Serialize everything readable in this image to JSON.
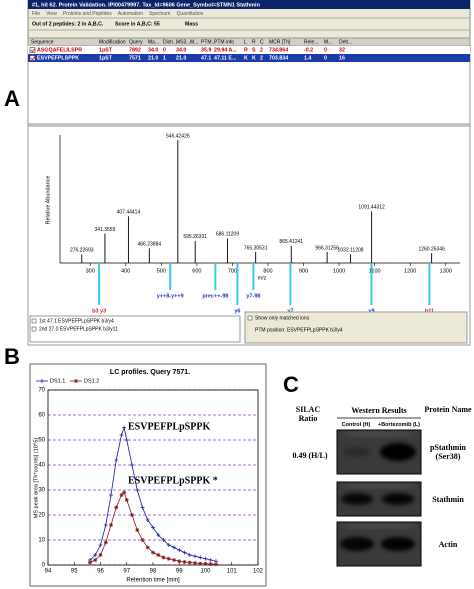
{
  "panel_labels": [
    "A",
    "B",
    "C"
  ],
  "panel_a": {
    "window_title": "#1, hit 62. Protein Validation. IPI00479997. Tax_Id=9606 Gene_Symbol=STMN1 Stathmin",
    "menu": [
      "File",
      "View",
      "Proteins and Peptides",
      "Automation",
      "Spectrum",
      "Quantitation"
    ],
    "toolbar": [
      "Out of 2 peptides: 2 in A,B,C.",
      "Score in A,B,C: 55",
      "Mass"
    ],
    "table": {
      "columns": [
        "Sequence",
        "Modification",
        "Query",
        "Ma...",
        "Dish...",
        "MS3...",
        "M...",
        "PTM...",
        "PTM info",
        "L",
        "R",
        "C",
        "MCR [Th]",
        "Rele...",
        "M...",
        "Delt..."
      ],
      "rows": [
        [
          "ASGQAFELILSPR",
          "1pST",
          "7892",
          "34.0",
          "0",
          "34.0",
          null,
          "35.9",
          "29.94 A...",
          "R",
          "S",
          "2",
          "734.864",
          "-0.2",
          "0",
          "32"
        ],
        [
          "ESVPEFPLSPPK",
          "1pST",
          "7571",
          "21.0",
          "1",
          "21.0",
          null,
          "47.1",
          "47.11 E...",
          "K",
          "K",
          "2",
          "703.834",
          "1.4",
          "0",
          "16"
        ]
      ]
    },
    "spectrum_checks": [
      "1st 47.1 ESVPEFPLpSPPK b3/y4",
      "2nd 27.0 ESVPEFPLpSPPK b3/y11"
    ],
    "show_only_matched": "Show only matched ions",
    "ptm_position": "PTM position: ESVPEFPLpSPPK b3/y4"
  },
  "chart_data": [
    {
      "type": "stem",
      "x": [
        276.22693,
        341.3559,
        407.44414,
        466.23884,
        546.42426,
        595.26331,
        686.11209,
        765.30531,
        865.41241,
        966.31256,
        1032.11208,
        1091.44312,
        1260.26346
      ],
      "values": [
        7,
        24,
        38,
        12,
        100,
        18,
        20,
        9,
        14,
        9,
        7,
        42,
        8
      ],
      "color": "#000000",
      "xlim": [
        215,
        1340
      ],
      "xticks": [
        300,
        400,
        500,
        600,
        700,
        800,
        900,
        1000,
        1100,
        1200,
        1300
      ],
      "ylim": [
        0,
        100
      ],
      "xlabel": "m/z",
      "ylabel": "Relative Abundance",
      "annotations": [
        {
          "text": "b3 y3",
          "x": 325,
          "color": "#cc2222"
        },
        {
          "text": "y++8-y++9",
          "x": 525,
          "color": "#2233cc"
        },
        {
          "text": "prec++-98",
          "x": 652,
          "color": "#2233cc"
        },
        {
          "text": "y6",
          "x": 714,
          "color": "#2233cc"
        },
        {
          "text": "y7-98",
          "x": 759,
          "color": "#2233cc"
        },
        {
          "text": "y7",
          "x": 863,
          "color": "#2233cc"
        },
        {
          "text": "y9",
          "x": 1091,
          "color": "#2233cc"
        },
        {
          "text": "b11",
          "x": 1254,
          "color": "#cc2222"
        }
      ]
    },
    {
      "type": "line",
      "title": "LC profiles. Query 7571.",
      "x": [
        95.6,
        95.8,
        96.0,
        96.2,
        96.4,
        96.6,
        96.8,
        96.9,
        97.0,
        97.2,
        97.4,
        97.6,
        97.8,
        98.0,
        98.2,
        98.4,
        98.6,
        98.8,
        99.0,
        99.2,
        99.4,
        99.6,
        99.8,
        100.0,
        100.2,
        100.4
      ],
      "series": [
        {
          "name": "DS1.1",
          "color": "#1a1aa8",
          "values": [
            2,
            4,
            8,
            16,
            28,
            42,
            52,
            55,
            50,
            40,
            30,
            23,
            18,
            15,
            12,
            10,
            8,
            7,
            6,
            5,
            4,
            3.5,
            3,
            2.5,
            2,
            1.5
          ]
        },
        {
          "name": "DS1.2",
          "color": "#8b1a1a",
          "values": [
            1,
            2,
            4,
            9,
            16,
            23,
            28,
            29,
            26,
            20,
            14,
            10,
            7,
            5,
            4,
            3,
            2.5,
            2,
            1.5,
            1.2,
            1,
            0.8,
            0.6,
            0.5,
            0.4,
            0.3
          ]
        }
      ],
      "xlim": [
        94,
        102
      ],
      "xticks": [
        94,
        95,
        96,
        97,
        98,
        99,
        100,
        101,
        102
      ],
      "ylim": [
        0,
        70
      ],
      "yticks": [
        0,
        10,
        20,
        30,
        40,
        50,
        60,
        70
      ],
      "xlabel": "Retention time [min]",
      "ylabel": "MS peak area [Th*counts] (10^5)",
      "grid": true,
      "annotations": [
        "ESVPEFPLpSPPK",
        "ESVPEFPLpSPPK *"
      ]
    }
  ],
  "panel_c": {
    "silac_header": "SILAC Ratio",
    "western_header": "Western Results",
    "lanes": [
      "Control (H)",
      "+Bortezomib (L)"
    ],
    "protein_header": "Protein Name",
    "ratio": "0.49 (H/L)",
    "proteins": [
      "pStathmin (Ser38)",
      "Stathmin",
      "Actin"
    ]
  }
}
